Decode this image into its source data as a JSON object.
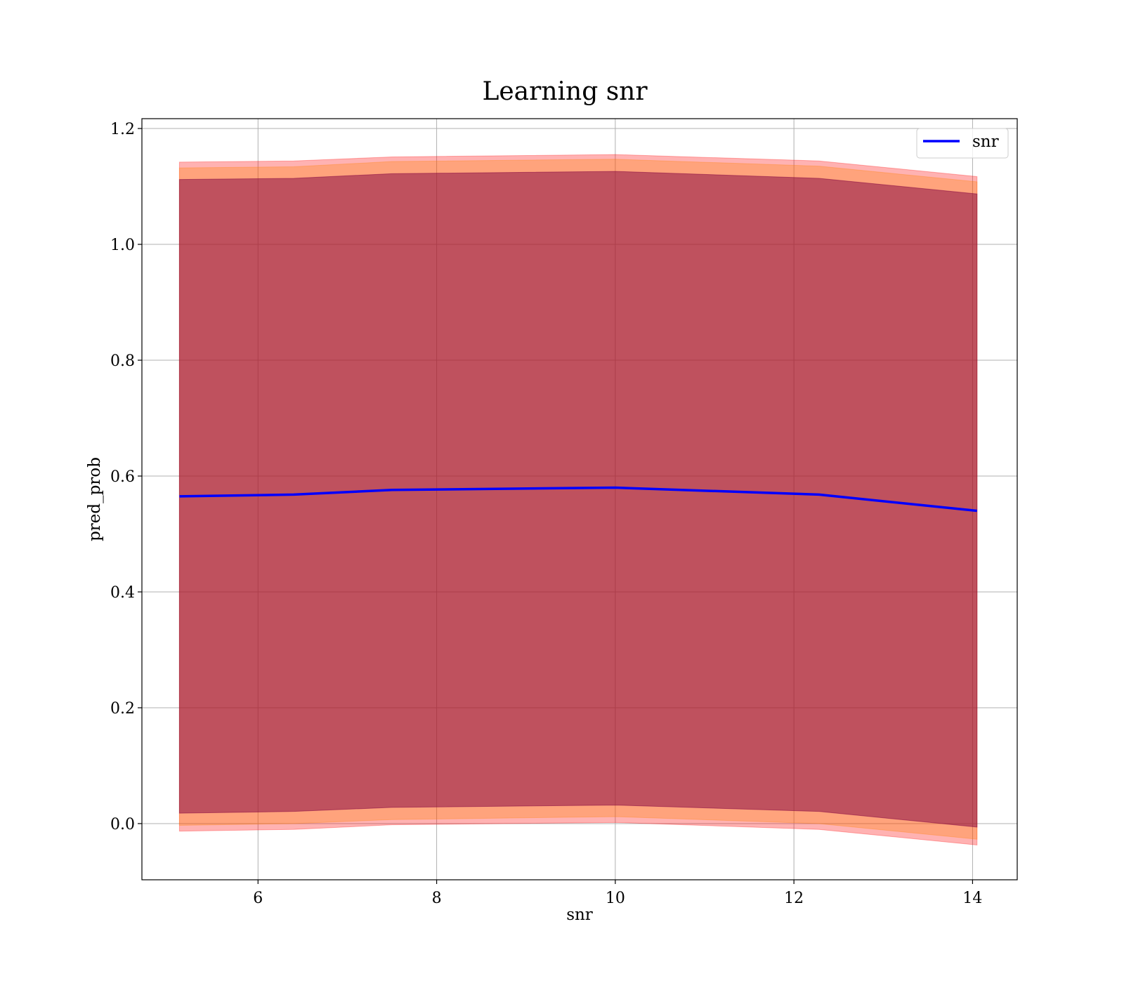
{
  "chart_data": {
    "type": "line",
    "title": "Learning snr",
    "xlabel": "snr",
    "ylabel": "pred_prob",
    "xlim": [
      4.7,
      14.5
    ],
    "ylim": [
      -0.097,
      1.217
    ],
    "xticks": [
      6,
      8,
      10,
      12,
      14
    ],
    "yticks": [
      0.0,
      0.2,
      0.4,
      0.6,
      0.8,
      1.0,
      1.2
    ],
    "grid": true,
    "legend_position": "top-right",
    "x": [
      5.12,
      6.4,
      7.5,
      10.0,
      12.28,
      14.05
    ],
    "series": [
      {
        "name": "snr",
        "color": "#0000ff",
        "values": [
          0.565,
          0.568,
          0.576,
          0.58,
          0.568,
          0.54
        ]
      }
    ],
    "bands": [
      {
        "color": "#ff0000",
        "opacity": 0.3,
        "lower": [
          -0.013,
          -0.01,
          -0.002,
          0.002,
          -0.01,
          -0.037
        ],
        "upper": [
          1.142,
          1.144,
          1.151,
          1.155,
          1.144,
          1.117
        ]
      },
      {
        "color": "#ff8000",
        "opacity": 0.3,
        "lower": [
          -0.003,
          0.0,
          0.007,
          0.012,
          0.0,
          -0.027
        ],
        "upper": [
          1.132,
          1.134,
          1.143,
          1.147,
          1.135,
          1.108
        ]
      },
      {
        "color": "#800040",
        "opacity": 0.5,
        "lower": [
          0.018,
          0.021,
          0.028,
          0.032,
          0.021,
          -0.006
        ],
        "upper": [
          1.112,
          1.114,
          1.122,
          1.126,
          1.114,
          1.087
        ]
      }
    ]
  }
}
